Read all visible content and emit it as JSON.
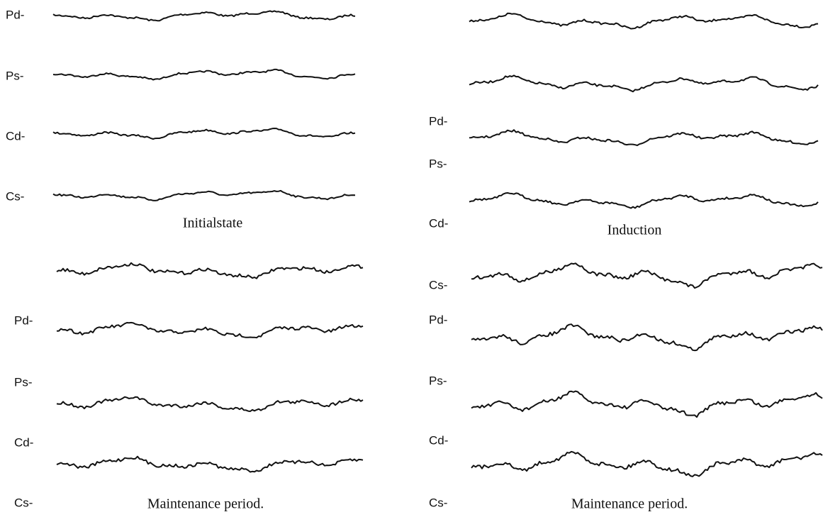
{
  "panels": [
    {
      "labels": [
        "Pd-",
        "Ps-",
        "Cd-",
        "Cs-"
      ],
      "caption": "Initialstate"
    },
    {
      "labels": [
        "Pd-",
        "Ps-",
        "Cd-",
        "Cs-"
      ],
      "caption": "Induction"
    },
    {
      "labels": [
        "Pd-",
        "Ps-",
        "Cd-",
        "Cs-"
      ],
      "caption": "Maintenance period."
    },
    {
      "labels": [
        "Pd-",
        "Ps-",
        "Cd-",
        "Cs-"
      ],
      "caption": "Maintenance period."
    }
  ]
}
